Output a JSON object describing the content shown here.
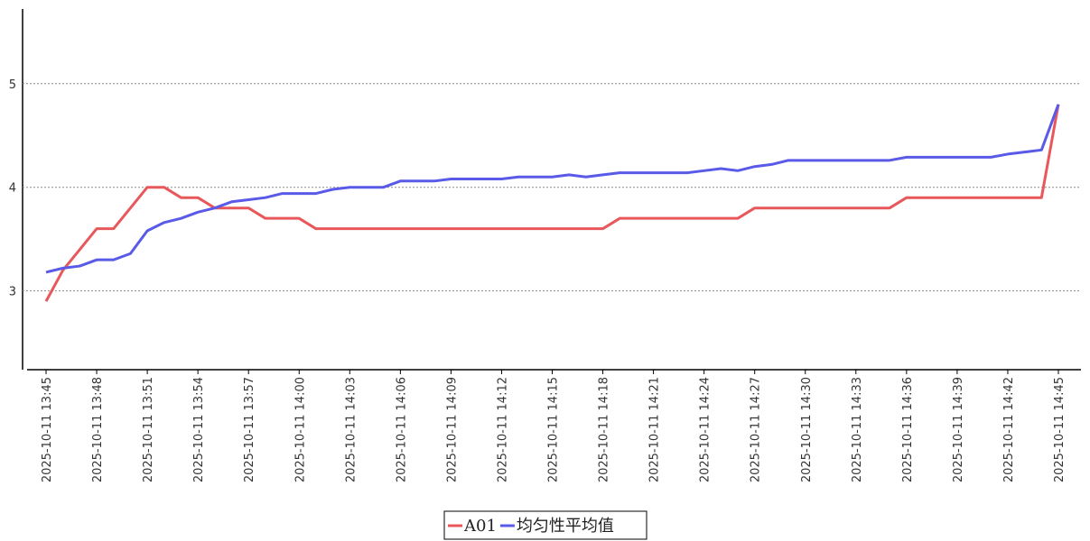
{
  "chart_data": {
    "type": "line",
    "categories": [
      "2025-10-11 13:45",
      null,
      null,
      "2025-10-11 13:48",
      null,
      null,
      "2025-10-11 13:51",
      null,
      null,
      "2025-10-11 13:54",
      null,
      null,
      "2025-10-11 13:57",
      null,
      null,
      "2025-10-11 14:00",
      null,
      null,
      "2025-10-11 14:03",
      null,
      null,
      "2025-10-11 14:06",
      null,
      null,
      "2025-10-11 14:09",
      null,
      null,
      "2025-10-11 14:12",
      null,
      null,
      "2025-10-11 14:15",
      null,
      null,
      "2025-10-11 14:18",
      null,
      null,
      "2025-10-11 14:21",
      null,
      null,
      "2025-10-11 14:24",
      null,
      null,
      "2025-10-11 14:27",
      null,
      null,
      "2025-10-11 14:30",
      null,
      null,
      "2025-10-11 14:33",
      null,
      null,
      "2025-10-11 14:36",
      null,
      null,
      "2025-10-11 14:39",
      null,
      null,
      "2025-10-11 14:42",
      null,
      null,
      "2025-10-11 14:45"
    ],
    "series": [
      {
        "name": "A01",
        "color": "#e8585a",
        "values": [
          2.9,
          3.2,
          3.4,
          3.6,
          3.6,
          3.8,
          4.0,
          4.0,
          3.9,
          3.9,
          3.8,
          3.8,
          3.8,
          3.7,
          3.7,
          3.7,
          3.6,
          3.6,
          3.6,
          3.6,
          3.6,
          3.6,
          3.6,
          3.6,
          3.6,
          3.6,
          3.6,
          3.6,
          3.6,
          3.6,
          3.6,
          3.6,
          3.6,
          3.6,
          3.7,
          3.7,
          3.7,
          3.7,
          3.7,
          3.7,
          3.7,
          3.7,
          3.8,
          3.8,
          3.8,
          3.8,
          3.8,
          3.8,
          3.8,
          3.8,
          3.8,
          3.9,
          3.9,
          3.9,
          3.9,
          3.9,
          3.9,
          3.9,
          3.9,
          3.9,
          4.8
        ]
      },
      {
        "name": "均匀性平均值",
        "color": "#5a5ae8",
        "values": [
          3.18,
          3.22,
          3.24,
          3.3,
          3.3,
          3.36,
          3.58,
          3.66,
          3.7,
          3.76,
          3.8,
          3.86,
          3.88,
          3.9,
          3.94,
          3.94,
          3.94,
          3.98,
          4.0,
          4.0,
          4.0,
          4.06,
          4.06,
          4.06,
          4.08,
          4.08,
          4.08,
          4.08,
          4.1,
          4.1,
          4.1,
          4.12,
          4.1,
          4.12,
          4.14,
          4.14,
          4.14,
          4.14,
          4.14,
          4.16,
          4.18,
          4.16,
          4.2,
          4.22,
          4.26,
          4.26,
          4.26,
          4.26,
          4.26,
          4.26,
          4.26,
          4.29,
          4.29,
          4.29,
          4.29,
          4.29,
          4.29,
          4.32,
          4.34,
          4.36,
          4.8
        ]
      }
    ],
    "ylim": [
      2.24,
      5.72
    ],
    "yticks": [
      3,
      4,
      5
    ],
    "grid": true
  }
}
